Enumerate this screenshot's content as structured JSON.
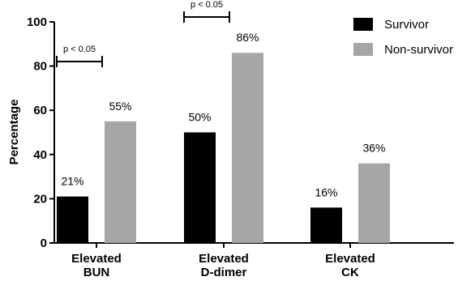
{
  "chart_data": {
    "type": "bar",
    "ylabel": "Percentage",
    "ylim": [
      0,
      100
    ],
    "yticks": [
      0,
      20,
      40,
      60,
      80,
      100
    ],
    "categories": [
      {
        "line1": "Elevated",
        "line2": "BUN"
      },
      {
        "line1": "Elevated",
        "line2": "D-dimer"
      },
      {
        "line1": "Elevated",
        "line2": "CK"
      }
    ],
    "series": [
      {
        "name": "Survivor",
        "color": "#000000",
        "values": [
          21,
          50,
          16
        ],
        "labels": [
          "21%",
          "50%",
          "16%"
        ]
      },
      {
        "name": "Non-survivor",
        "color": "#a6a6a6",
        "values": [
          55,
          86,
          36
        ],
        "labels": [
          "55%",
          "86%",
          "36%"
        ]
      }
    ],
    "annotations": [
      {
        "category_index": 0,
        "text": "p < 0.05"
      },
      {
        "category_index": 1,
        "text": "p < 0.05"
      }
    ],
    "legend_position": "top-right",
    "grid": false
  }
}
